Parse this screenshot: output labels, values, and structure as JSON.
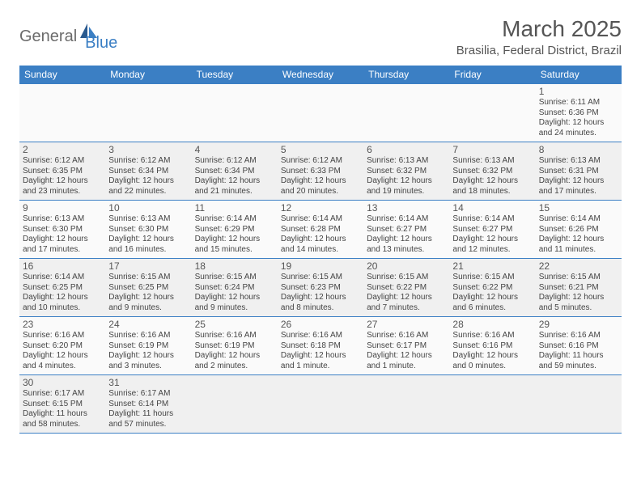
{
  "logo": {
    "general": "General",
    "blue": "Blue"
  },
  "title": "March 2025",
  "location": "Brasilia, Federal District, Brazil",
  "colors": {
    "header_bg": "#3b7fc4",
    "header_text": "#ffffff",
    "cell_border": "#3b7fc4",
    "bg_light": "#fafafa",
    "bg_alt": "#f0f0f0",
    "text": "#444444",
    "title_text": "#555555"
  },
  "weekdays": [
    "Sunday",
    "Monday",
    "Tuesday",
    "Wednesday",
    "Thursday",
    "Friday",
    "Saturday"
  ],
  "weeks": [
    [
      null,
      null,
      null,
      null,
      null,
      null,
      {
        "n": "1",
        "sunrise": "Sunrise: 6:11 AM",
        "sunset": "Sunset: 6:36 PM",
        "daylight": "Daylight: 12 hours and 24 minutes."
      }
    ],
    [
      {
        "n": "2",
        "sunrise": "Sunrise: 6:12 AM",
        "sunset": "Sunset: 6:35 PM",
        "daylight": "Daylight: 12 hours and 23 minutes."
      },
      {
        "n": "3",
        "sunrise": "Sunrise: 6:12 AM",
        "sunset": "Sunset: 6:34 PM",
        "daylight": "Daylight: 12 hours and 22 minutes."
      },
      {
        "n": "4",
        "sunrise": "Sunrise: 6:12 AM",
        "sunset": "Sunset: 6:34 PM",
        "daylight": "Daylight: 12 hours and 21 minutes."
      },
      {
        "n": "5",
        "sunrise": "Sunrise: 6:12 AM",
        "sunset": "Sunset: 6:33 PM",
        "daylight": "Daylight: 12 hours and 20 minutes."
      },
      {
        "n": "6",
        "sunrise": "Sunrise: 6:13 AM",
        "sunset": "Sunset: 6:32 PM",
        "daylight": "Daylight: 12 hours and 19 minutes."
      },
      {
        "n": "7",
        "sunrise": "Sunrise: 6:13 AM",
        "sunset": "Sunset: 6:32 PM",
        "daylight": "Daylight: 12 hours and 18 minutes."
      },
      {
        "n": "8",
        "sunrise": "Sunrise: 6:13 AM",
        "sunset": "Sunset: 6:31 PM",
        "daylight": "Daylight: 12 hours and 17 minutes."
      }
    ],
    [
      {
        "n": "9",
        "sunrise": "Sunrise: 6:13 AM",
        "sunset": "Sunset: 6:30 PM",
        "daylight": "Daylight: 12 hours and 17 minutes."
      },
      {
        "n": "10",
        "sunrise": "Sunrise: 6:13 AM",
        "sunset": "Sunset: 6:30 PM",
        "daylight": "Daylight: 12 hours and 16 minutes."
      },
      {
        "n": "11",
        "sunrise": "Sunrise: 6:14 AM",
        "sunset": "Sunset: 6:29 PM",
        "daylight": "Daylight: 12 hours and 15 minutes."
      },
      {
        "n": "12",
        "sunrise": "Sunrise: 6:14 AM",
        "sunset": "Sunset: 6:28 PM",
        "daylight": "Daylight: 12 hours and 14 minutes."
      },
      {
        "n": "13",
        "sunrise": "Sunrise: 6:14 AM",
        "sunset": "Sunset: 6:27 PM",
        "daylight": "Daylight: 12 hours and 13 minutes."
      },
      {
        "n": "14",
        "sunrise": "Sunrise: 6:14 AM",
        "sunset": "Sunset: 6:27 PM",
        "daylight": "Daylight: 12 hours and 12 minutes."
      },
      {
        "n": "15",
        "sunrise": "Sunrise: 6:14 AM",
        "sunset": "Sunset: 6:26 PM",
        "daylight": "Daylight: 12 hours and 11 minutes."
      }
    ],
    [
      {
        "n": "16",
        "sunrise": "Sunrise: 6:14 AM",
        "sunset": "Sunset: 6:25 PM",
        "daylight": "Daylight: 12 hours and 10 minutes."
      },
      {
        "n": "17",
        "sunrise": "Sunrise: 6:15 AM",
        "sunset": "Sunset: 6:25 PM",
        "daylight": "Daylight: 12 hours and 9 minutes."
      },
      {
        "n": "18",
        "sunrise": "Sunrise: 6:15 AM",
        "sunset": "Sunset: 6:24 PM",
        "daylight": "Daylight: 12 hours and 9 minutes."
      },
      {
        "n": "19",
        "sunrise": "Sunrise: 6:15 AM",
        "sunset": "Sunset: 6:23 PM",
        "daylight": "Daylight: 12 hours and 8 minutes."
      },
      {
        "n": "20",
        "sunrise": "Sunrise: 6:15 AM",
        "sunset": "Sunset: 6:22 PM",
        "daylight": "Daylight: 12 hours and 7 minutes."
      },
      {
        "n": "21",
        "sunrise": "Sunrise: 6:15 AM",
        "sunset": "Sunset: 6:22 PM",
        "daylight": "Daylight: 12 hours and 6 minutes."
      },
      {
        "n": "22",
        "sunrise": "Sunrise: 6:15 AM",
        "sunset": "Sunset: 6:21 PM",
        "daylight": "Daylight: 12 hours and 5 minutes."
      }
    ],
    [
      {
        "n": "23",
        "sunrise": "Sunrise: 6:16 AM",
        "sunset": "Sunset: 6:20 PM",
        "daylight": "Daylight: 12 hours and 4 minutes."
      },
      {
        "n": "24",
        "sunrise": "Sunrise: 6:16 AM",
        "sunset": "Sunset: 6:19 PM",
        "daylight": "Daylight: 12 hours and 3 minutes."
      },
      {
        "n": "25",
        "sunrise": "Sunrise: 6:16 AM",
        "sunset": "Sunset: 6:19 PM",
        "daylight": "Daylight: 12 hours and 2 minutes."
      },
      {
        "n": "26",
        "sunrise": "Sunrise: 6:16 AM",
        "sunset": "Sunset: 6:18 PM",
        "daylight": "Daylight: 12 hours and 1 minute."
      },
      {
        "n": "27",
        "sunrise": "Sunrise: 6:16 AM",
        "sunset": "Sunset: 6:17 PM",
        "daylight": "Daylight: 12 hours and 1 minute."
      },
      {
        "n": "28",
        "sunrise": "Sunrise: 6:16 AM",
        "sunset": "Sunset: 6:16 PM",
        "daylight": "Daylight: 12 hours and 0 minutes."
      },
      {
        "n": "29",
        "sunrise": "Sunrise: 6:16 AM",
        "sunset": "Sunset: 6:16 PM",
        "daylight": "Daylight: 11 hours and 59 minutes."
      }
    ],
    [
      {
        "n": "30",
        "sunrise": "Sunrise: 6:17 AM",
        "sunset": "Sunset: 6:15 PM",
        "daylight": "Daylight: 11 hours and 58 minutes."
      },
      {
        "n": "31",
        "sunrise": "Sunrise: 6:17 AM",
        "sunset": "Sunset: 6:14 PM",
        "daylight": "Daylight: 11 hours and 57 minutes."
      },
      null,
      null,
      null,
      null,
      null
    ]
  ]
}
